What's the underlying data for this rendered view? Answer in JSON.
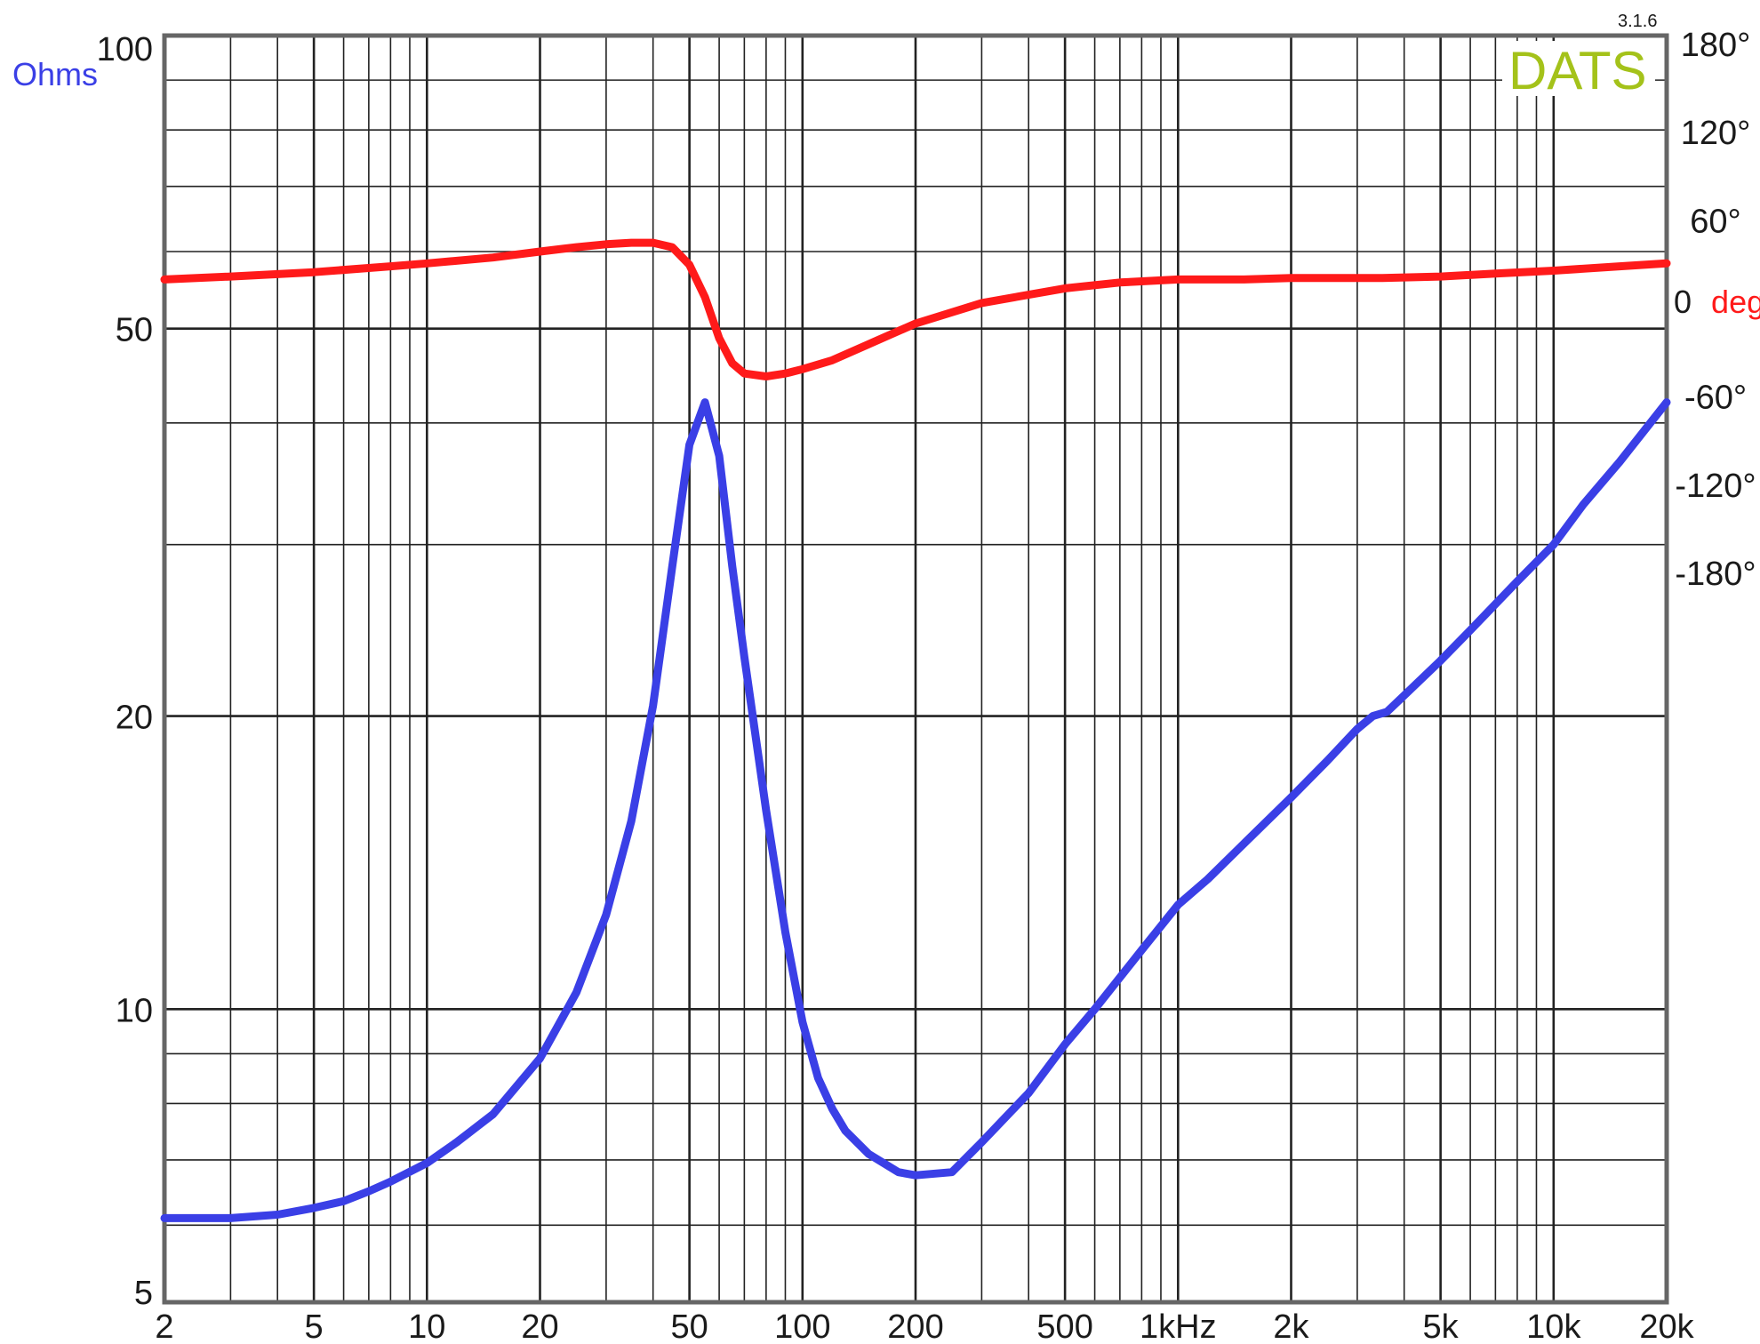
{
  "colors": {
    "impedance": "#3a3fe6",
    "phase": "#ff1a1a",
    "grid": "#222222",
    "frame": "#666666",
    "logo": "#a4c21a"
  },
  "logo": {
    "text": "DATS",
    "version": "3.1.6"
  },
  "chart_data": {
    "type": "line",
    "x_scale": "log",
    "y_scale": "log",
    "xlim": [
      2,
      20000
    ],
    "ylim": [
      5,
      100
    ],
    "y2lim": [
      -180,
      180
    ],
    "grid": true,
    "ylabel": "Ohms",
    "y2label_value": "0",
    "y2label_unit": "deg",
    "x_ticks": [
      {
        "value": 2,
        "label": "2"
      },
      {
        "value": 5,
        "label": "5"
      },
      {
        "value": 10,
        "label": "10"
      },
      {
        "value": 20,
        "label": "20"
      },
      {
        "value": 50,
        "label": "50"
      },
      {
        "value": 100,
        "label": "100"
      },
      {
        "value": 200,
        "label": "200"
      },
      {
        "value": 500,
        "label": "500"
      },
      {
        "value": 1000,
        "label": "1kHz"
      },
      {
        "value": 2000,
        "label": "2k"
      },
      {
        "value": 5000,
        "label": "5k"
      },
      {
        "value": 10000,
        "label": "10k"
      },
      {
        "value": 20000,
        "label": "20k"
      }
    ],
    "y_ticks": [
      {
        "value": 5,
        "label": "5"
      },
      {
        "value": 10,
        "label": "10"
      },
      {
        "value": 20,
        "label": "20"
      },
      {
        "value": 50,
        "label": "50"
      },
      {
        "value": 100,
        "label": "100"
      }
    ],
    "y2_ticks": [
      {
        "value": 180,
        "label": "180°"
      },
      {
        "value": 120,
        "label": "120°"
      },
      {
        "value": 60,
        "label": "60°"
      },
      {
        "value": -60,
        "label": "-60°"
      },
      {
        "value": -120,
        "label": "-120°"
      },
      {
        "value": -180,
        "label": "-180°"
      }
    ],
    "series": [
      {
        "key": "impedance",
        "axis": "left",
        "x": [
          2,
          3,
          4,
          5,
          6,
          7,
          8,
          10,
          12,
          15,
          20,
          25,
          30,
          35,
          40,
          45,
          50,
          55,
          60,
          65,
          70,
          80,
          90,
          100,
          110,
          120,
          130,
          150,
          180,
          200,
          250,
          300,
          400,
          500,
          600,
          800,
          1000,
          1200,
          1500,
          2000,
          2500,
          3000,
          3300,
          3600,
          4000,
          5000,
          6000,
          8000,
          10000,
          12000,
          15000,
          20000
        ],
        "y": [
          6.1,
          6.1,
          6.15,
          6.25,
          6.35,
          6.5,
          6.65,
          6.95,
          7.3,
          7.8,
          8.9,
          10.4,
          12.5,
          15.6,
          20.5,
          28.5,
          38.0,
          42.0,
          37.0,
          28.5,
          23.0,
          16.0,
          12.0,
          9.7,
          8.5,
          7.9,
          7.5,
          7.1,
          6.8,
          6.75,
          6.8,
          7.3,
          8.2,
          9.2,
          10.0,
          11.5,
          12.8,
          13.6,
          14.8,
          16.5,
          18.0,
          19.4,
          20.0,
          20.2,
          21.0,
          22.8,
          24.5,
          27.5,
          30.0,
          33.0,
          36.5,
          42.0
        ]
      },
      {
        "key": "phase",
        "axis": "right",
        "x": [
          2,
          3,
          5,
          8,
          10,
          15,
          20,
          25,
          30,
          35,
          40,
          45,
          50,
          55,
          60,
          65,
          70,
          80,
          90,
          100,
          120,
          150,
          200,
          300,
          500,
          700,
          1000,
          1500,
          2000,
          3000,
          3500,
          5000,
          7000,
          10000,
          15000,
          20000
        ],
        "y": [
          20,
          22,
          25,
          29,
          31,
          35,
          39,
          42,
          44,
          45,
          45,
          42,
          30,
          8,
          -20,
          -37,
          -44,
          -46,
          -44,
          -41,
          -35,
          -24,
          -10,
          4,
          14,
          18,
          20,
          20,
          21,
          21,
          21,
          22,
          24,
          26,
          29,
          31
        ]
      }
    ]
  }
}
